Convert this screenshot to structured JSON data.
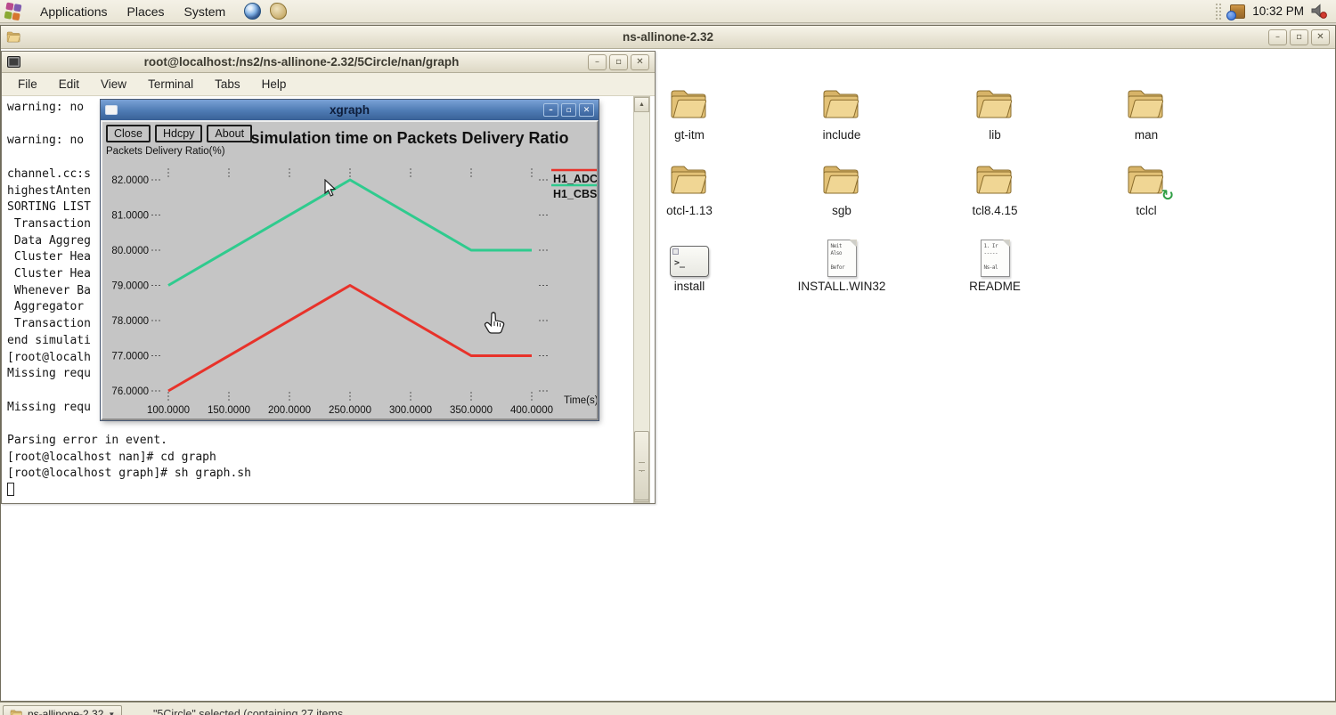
{
  "icons": {
    "minimize": "–",
    "maximize": "▫",
    "close": "✕",
    "scroll_up": "▲",
    "scroll_down": "▼",
    "dropdown": "▼",
    "symlink_emblem": "↻",
    "terminal_prompt": ">_"
  },
  "top_panel": {
    "menus": [
      "Applications",
      "Places",
      "System"
    ],
    "clock": "10:32 PM"
  },
  "file_manager_window": {
    "title": "ns-allinone-2.32",
    "items": [
      {
        "label": "gt-itm",
        "type": "folder"
      },
      {
        "label": "include",
        "type": "folder"
      },
      {
        "label": "lib",
        "type": "folder"
      },
      {
        "label": "man",
        "type": "folder"
      },
      {
        "label": "otcl-1.13",
        "type": "folder"
      },
      {
        "label": "sgb",
        "type": "folder"
      },
      {
        "label": "tcl8.4.15",
        "type": "folder"
      },
      {
        "label": "tclcl",
        "type": "folder",
        "emblem": "symlink"
      },
      {
        "label": "install",
        "type": "script"
      },
      {
        "label": "INSTALL.WIN32",
        "type": "text",
        "preview": [
          "Neit",
          "Also",
          "",
          "Befor"
        ]
      },
      {
        "label": "README",
        "type": "text",
        "preview": [
          "1. Ir",
          "-----",
          "",
          "Ns-al"
        ]
      }
    ]
  },
  "terminal_window": {
    "title": "root@localhost:/ns2/ns-allinone-2.32/5Circle/nan/graph",
    "menu_items": [
      "File",
      "Edit",
      "View",
      "Terminal",
      "Tabs",
      "Help"
    ],
    "lines": [
      "warning: no",
      "",
      "warning: no",
      "",
      "channel.cc:s",
      "highestAnten",
      "SORTING LIST",
      " Transaction",
      " Data Aggreg",
      " Cluster Hea",
      " Cluster Hea",
      " Whenever Ba",
      " Aggregator ",
      " Transaction",
      "end simulati",
      "[root@localh",
      "Missing requ",
      "",
      "Missing requ",
      "",
      "Parsing error in event.",
      "[root@localhost nan]# cd graph",
      "[root@localhost graph]# sh graph.sh"
    ]
  },
  "xgraph_window": {
    "title": "xgraph",
    "toolbar_buttons": [
      "Close",
      "Hdcpy",
      "About"
    ],
    "chart_title": "simulation time on Packets Delivery Ratio",
    "y_axis_label": "Packets Delivery Ratio(%)",
    "x_axis_label": "Time(s)"
  },
  "chart_data": {
    "type": "line",
    "title": "simulation time on Packets Delivery Ratio",
    "xlabel": "Time(s)",
    "ylabel": "Packets Delivery Ratio(%)",
    "xlim": [
      100,
      400
    ],
    "ylim": [
      76,
      82
    ],
    "x_ticks": [
      100,
      150,
      200,
      250,
      300,
      350,
      400
    ],
    "y_ticks": [
      76,
      77,
      78,
      79,
      80,
      81,
      82
    ],
    "tick_decimals": 4,
    "grid": false,
    "legend_position": "top-right",
    "series": [
      {
        "name": "H1_ADC",
        "color": "#e8322a",
        "x": [
          100,
          250,
          350,
          400
        ],
        "y": [
          76,
          79,
          77,
          77
        ]
      },
      {
        "name": "H1_CBS",
        "color": "#2fcb8e",
        "x": [
          100,
          250,
          350,
          400
        ],
        "y": [
          79,
          82,
          80,
          80
        ]
      }
    ]
  },
  "taskbar": {
    "window_button": "ns-allinone-2.32",
    "status_text": "\"5Circle\" selected (containing 27 items..."
  }
}
